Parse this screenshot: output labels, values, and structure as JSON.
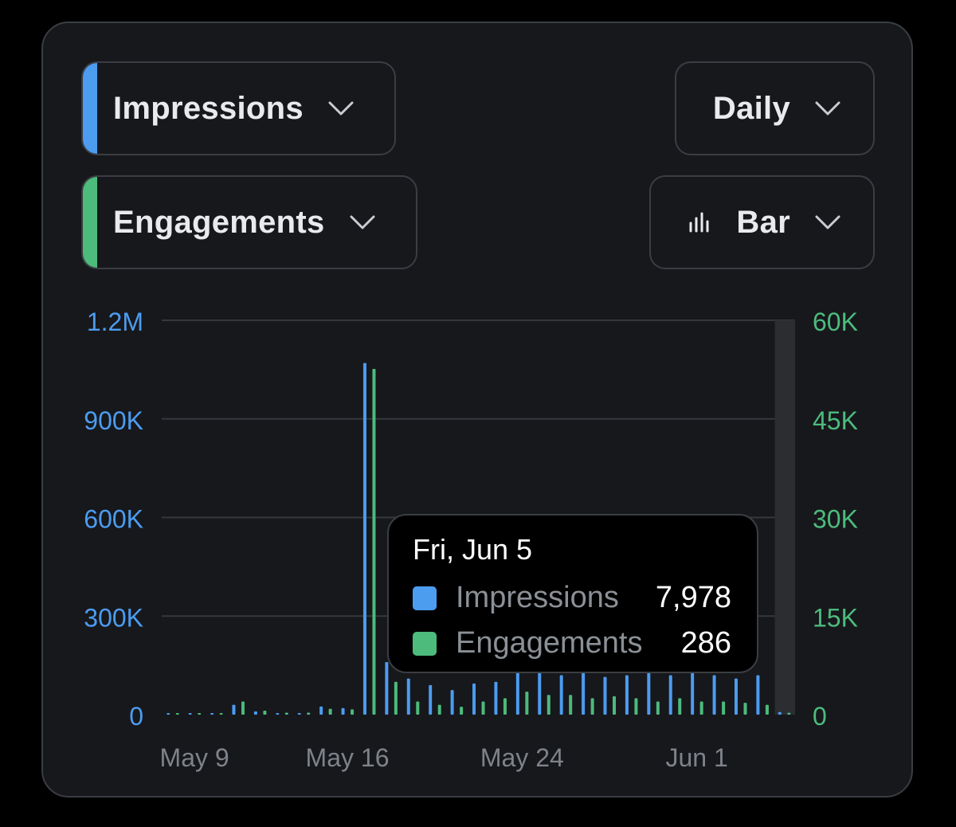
{
  "controls": {
    "metric_primary": {
      "label": "Impressions",
      "color": "#4c9cf0"
    },
    "metric_secondary": {
      "label": "Engagements",
      "color": "#4cbb7c"
    },
    "interval": {
      "label": "Daily"
    },
    "chart_type": {
      "label": "Bar",
      "icon": "bar-chart-icon"
    }
  },
  "tooltip": {
    "date": "Fri, Jun 5",
    "rows": [
      {
        "name": "Impressions",
        "value": "7,978",
        "color": "#4c9cf0"
      },
      {
        "name": "Engagements",
        "value": "286",
        "color": "#4cbb7c"
      }
    ]
  },
  "chart_data": {
    "type": "bar",
    "title": "",
    "xlabel": "",
    "y_left": {
      "ticks": [
        "0",
        "300K",
        "600K",
        "900K",
        "1.2M"
      ],
      "lim": [
        0,
        1200000
      ],
      "color": "#4c9cf0"
    },
    "y_right": {
      "ticks": [
        "0",
        "15K",
        "30K",
        "45K",
        "60K"
      ],
      "lim": [
        0,
        60000
      ],
      "color": "#4cbb7c"
    },
    "x_ticks": [
      {
        "label": "May 9",
        "index": 1
      },
      {
        "label": "May 16",
        "index": 8
      },
      {
        "label": "May 24",
        "index": 16
      },
      {
        "label": "Jun 1",
        "index": 24
      }
    ],
    "categories": [
      "May 8",
      "May 9",
      "May 10",
      "May 11",
      "May 12",
      "May 13",
      "May 14",
      "May 15",
      "May 16",
      "May 17",
      "May 18",
      "May 19",
      "May 20",
      "May 21",
      "May 22",
      "May 23",
      "May 24",
      "May 25",
      "May 26",
      "May 27",
      "May 28",
      "May 29",
      "May 30",
      "May 31",
      "Jun 1",
      "Jun 2",
      "Jun 3",
      "Jun 4",
      "Jun 5"
    ],
    "series": [
      {
        "name": "Impressions",
        "axis": "left",
        "color": "#4c9cf0",
        "values": [
          3000,
          3000,
          2000,
          30000,
          10000,
          5000,
          3000,
          25000,
          20000,
          1070000,
          160000,
          110000,
          90000,
          75000,
          95000,
          100000,
          140000,
          140000,
          120000,
          130000,
          115000,
          120000,
          130000,
          120000,
          130000,
          120000,
          110000,
          120000,
          7978
        ]
      },
      {
        "name": "Engagements",
        "axis": "right",
        "color": "#4cbb7c",
        "values": [
          150,
          150,
          150,
          2000,
          600,
          300,
          300,
          900,
          800,
          52600,
          5000,
          2000,
          1500,
          1200,
          2000,
          2500,
          3500,
          3000,
          3000,
          2500,
          2800,
          2500,
          2000,
          2500,
          2000,
          2000,
          1800,
          1500,
          286
        ]
      }
    ],
    "grid": true,
    "highlight_index": 28
  }
}
